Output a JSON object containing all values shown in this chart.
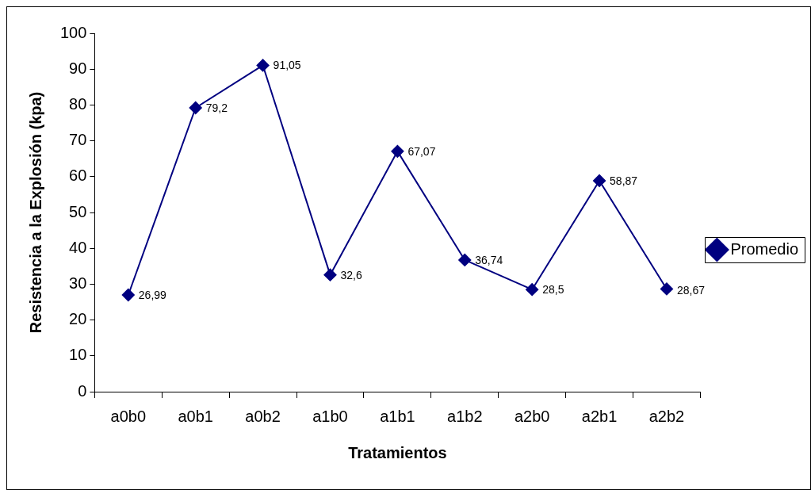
{
  "chart_data": {
    "type": "line",
    "categories": [
      "a0b0",
      "a0b1",
      "a0b2",
      "a1b0",
      "a1b1",
      "a1b2",
      "a2b0",
      "a2b1",
      "a2b2"
    ],
    "series": [
      {
        "name": "Promedio",
        "color": "#000080",
        "values": [
          26.99,
          79.2,
          91.05,
          32.6,
          67.07,
          36.74,
          28.5,
          58.87,
          28.67
        ],
        "value_labels": [
          "26,99",
          "79,2",
          "91,05",
          "32,6",
          "67,07",
          "36,74",
          "28,5",
          "58,87",
          "28,67"
        ]
      }
    ],
    "xlabel": "Tratamientos",
    "ylabel": "Resistencia a la Explosión (kpa)",
    "ylim": [
      0,
      100
    ],
    "yticks": [
      0,
      10,
      20,
      30,
      40,
      50,
      60,
      70,
      80,
      90,
      100
    ],
    "grid": false,
    "legend": "right",
    "marker": "diamond",
    "line_style": "solid"
  }
}
